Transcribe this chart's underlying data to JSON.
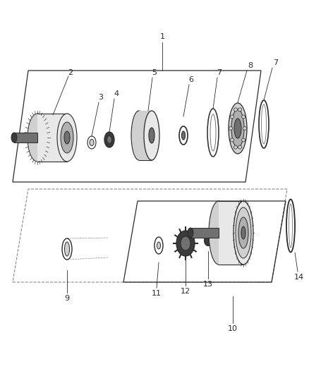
{
  "bg_color": "#ffffff",
  "lc": "#2a2a2a",
  "gray_dark": "#3a3a3a",
  "gray_mid": "#707070",
  "gray_light": "#b0b0b0",
  "gray_lighter": "#d0d0d0",
  "gray_lightest": "#e8e8e8",
  "fig_width": 4.38,
  "fig_height": 5.33,
  "dpi": 100
}
